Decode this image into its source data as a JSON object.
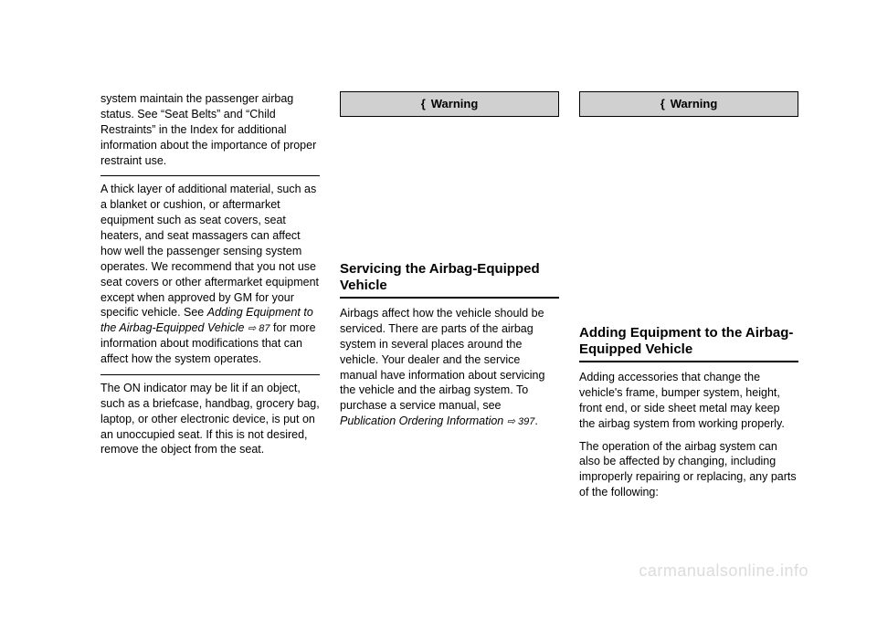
{
  "watermark": "carmanualsonline.info",
  "col1": {
    "p1": "system maintain the passenger airbag status. See “Seat Belts” and “Child Restraints” in the Index for additional information about the importance of proper restraint use.",
    "p2a": "A thick layer of additional material, such as a blanket or cushion, or aftermarket equipment such as seat covers, seat heaters, and seat massagers can affect how well the passenger sensing system operates. We recommend that you not use seat covers or other aftermarket equipment except when approved by GM for your specific vehicle. See ",
    "p2b": "Adding Equipment to the Airbag-Equipped Vehicle ",
    "p2c": "⇨ 87",
    "p2d": " for more information about modifications that can affect how the system operates.",
    "p3": "The ON indicator may be lit if an object, such as a briefcase, handbag, grocery bag, laptop, or other electronic device, is put on an unoccupied seat. If this is not desired, remove the object from the seat."
  },
  "col2": {
    "warning": "Warning",
    "heading": "Servicing the Airbag-Equipped Vehicle",
    "p1a": "Airbags affect how the vehicle should be serviced. There are parts of the airbag system in several places around the vehicle. Your dealer and the service manual have information about servicing the vehicle and the airbag system. To purchase a service manual, see ",
    "p1b": "Publication Ordering Information ",
    "p1c": "⇨ 397",
    "p1d": "."
  },
  "col3": {
    "warning": "Warning",
    "heading": "Adding Equipment to the Airbag-Equipped Vehicle",
    "p1": "Adding accessories that change the vehicle's frame, bumper system, height, front end, or side sheet metal may keep the airbag system from working properly.",
    "p2": "The operation of the airbag system can also be affected by changing, including improperly repairing or replacing, any parts of the following:"
  },
  "colors": {
    "text": "#000000",
    "background": "#ffffff",
    "warningBg": "#d0d0d0",
    "watermark": "#dcdcdc"
  },
  "fonts": {
    "body": 12.5,
    "heading": 15,
    "warning": 13
  }
}
